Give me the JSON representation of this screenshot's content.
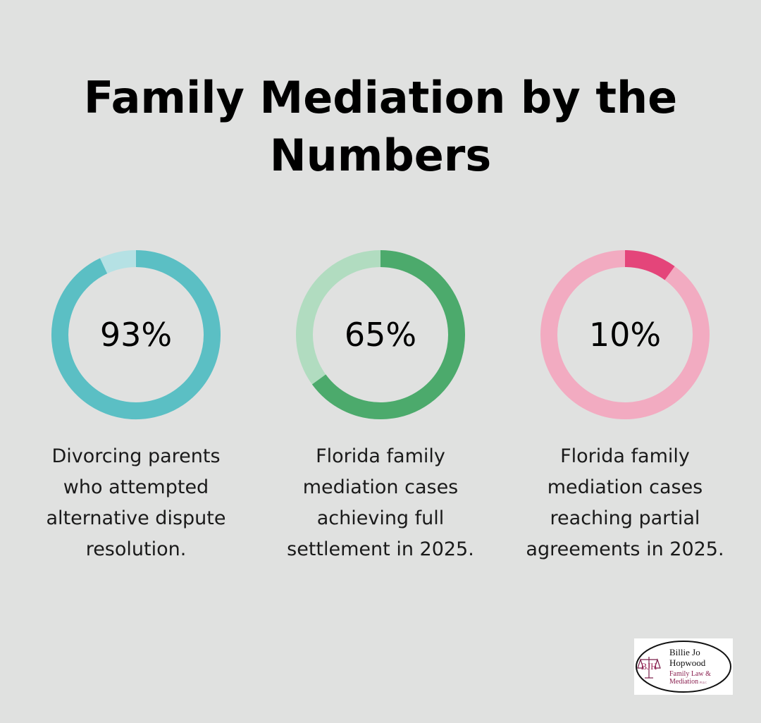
{
  "title": "Family Mediation by the Numbers",
  "chart_data": [
    {
      "type": "pie",
      "value": 93,
      "label": "93%",
      "description": "Divorcing parents who attempted alternative dispute resolution.",
      "colors": {
        "filled": "#5bbfc4",
        "remainder": "#b5e1e4"
      }
    },
    {
      "type": "pie",
      "value": 65,
      "label": "65%",
      "description": "Florida family mediation cases achieving full settlement in 2025.",
      "colors": {
        "filled": "#4caa6c",
        "remainder": "#b1dcc0"
      }
    },
    {
      "type": "pie",
      "value": 10,
      "label": "10%",
      "description": "Florida family mediation cases reaching partial agreements in 2025.",
      "colors": {
        "filled": "#e4457a",
        "remainder": "#f2abc1"
      }
    }
  ],
  "logo": {
    "monogram": "BJH",
    "line1": "Billie Jo",
    "line2": "Hopwood",
    "line3": "Family Law &",
    "line4": "Mediation",
    "suffix": "PLLC"
  }
}
